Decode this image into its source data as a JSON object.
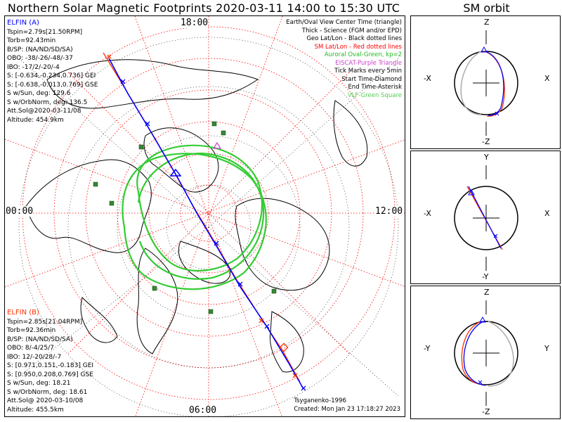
{
  "title": "Northern Solar Magnetic Footprints 2020-03-11 14:00 to 15:30 UTC",
  "sm_title": "SM orbit",
  "hours": {
    "top": "18:00",
    "left": "00:00",
    "right": "12:00",
    "bottom": "06:00"
  },
  "elfin_a": {
    "label": "ELFIN (A)",
    "lines": [
      "Tspin=2.79s[21.50RPM]",
      "Torb=92.43min",
      "B/SP: (NA/ND/SD/SA)",
      "OBO: -38/-26/-48/-37",
      "IBO: -17/2/-20/-4",
      "S: [-0.634,-0.234,0.736] GEI",
      "S: [-0.638,-0.013,0.769] GSE",
      "S w/Sun, deg: 129.6",
      "S w/OrbNorm, deg: 136.5",
      "Att.Sol@2020-03-11/08",
      "Altitude: 454.9km"
    ]
  },
  "elfin_b": {
    "label": "ELFIN (B)",
    "lines": [
      "Tspin=2.85s[21.04RPM]",
      "Torb=92.36min",
      "B/SP: (NA/ND/SD/SA)",
      "OBO: 8/-4/25/7",
      "IBO: 12/-20/28/-7",
      "S: [0.971,0.151,-0.183] GEI",
      "S: [0.950,0.208,0.769] GSE",
      "S w/Sun, deg: 18.21",
      "S w/OrbNorm, deg: 18.61",
      "Att.Sol@ 2020-03-10/08",
      "Altitude: 455.5km"
    ]
  },
  "legend": [
    {
      "text": "Earth/Oval View Center Time (triangle)",
      "color": "#000000"
    },
    {
      "text": "Thick - Science (FGM and/or EPD)",
      "color": "#000000"
    },
    {
      "text": "Geo Lat/Lon - Black dotted lines",
      "color": "#000000"
    },
    {
      "text": "SM Lat/Lon - Red dotted lines",
      "color": "#ff0000"
    },
    {
      "text": "Auroral Oval-Green, kp=2",
      "color": "#22bb22"
    },
    {
      "text": "EISCAT-Purple Triangle",
      "color": "#cc44cc"
    },
    {
      "text": "Tick Marks every 5min",
      "color": "#000000"
    },
    {
      "text": "Start Time-Diamond",
      "color": "#000000"
    },
    {
      "text": "End Time-Asterisk",
      "color": "#000000"
    },
    {
      "text": "VLF-Green Square",
      "color": "#55cc55"
    }
  ],
  "credit": {
    "author": "Tsyganenko-1996",
    "created": "Created: Mon Jan 23 17:18:27 2023"
  },
  "sm_panels": [
    {
      "top": "Z",
      "bottom": "-Z",
      "left": "-X",
      "right": "X"
    },
    {
      "top": "Y",
      "bottom": "-Y",
      "left": "-X",
      "right": "X"
    },
    {
      "top": "Z",
      "bottom": "-Z",
      "left": "-Y",
      "right": "Y"
    }
  ],
  "colors": {
    "elfin_a": "#0000ff",
    "elfin_b": "#ff3300",
    "oval": "#33cc33",
    "sm_grid": "#ff0000",
    "vlf": "#338833"
  }
}
